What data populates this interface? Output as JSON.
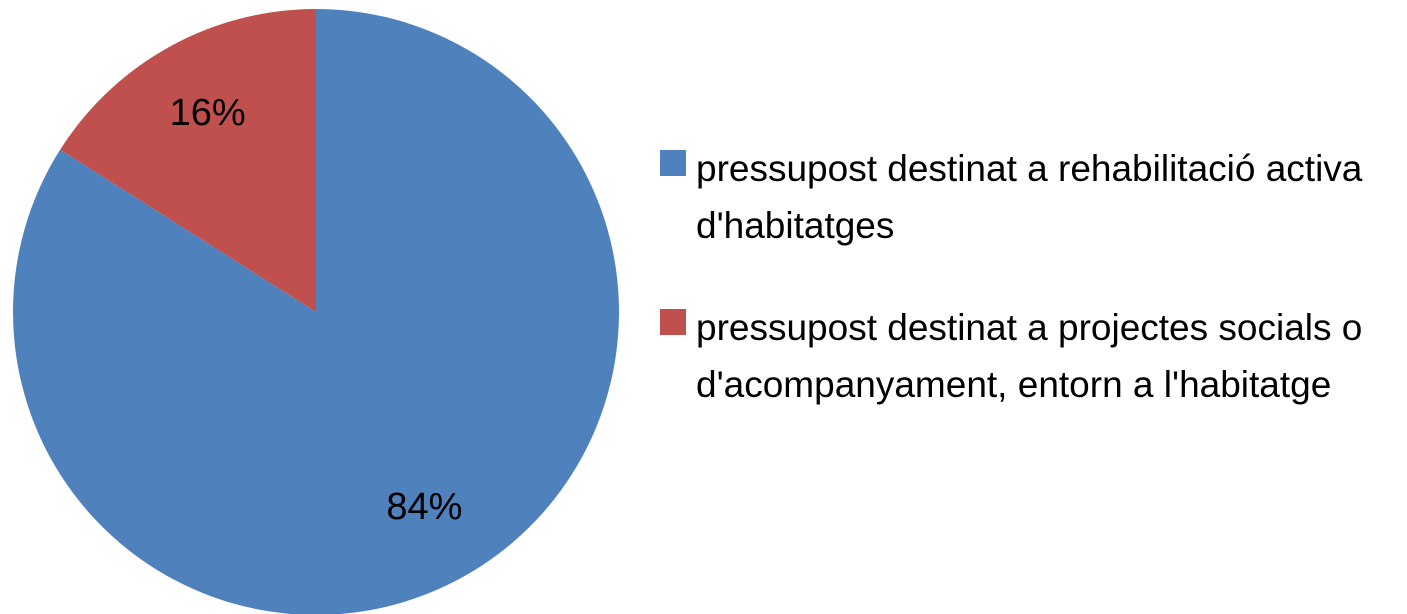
{
  "chart_data": {
    "type": "pie",
    "categories": [
      "pressupost destinat a rehabilitació activa d'habitatges",
      "pressupost destinat a projectes socials o d'acompanyament, entorn a l'habitatge"
    ],
    "values": [
      84,
      16
    ],
    "value_labels": [
      "84%",
      "16%"
    ],
    "colors": [
      "#4f81bd",
      "#c0504d"
    ],
    "legend": "right"
  }
}
